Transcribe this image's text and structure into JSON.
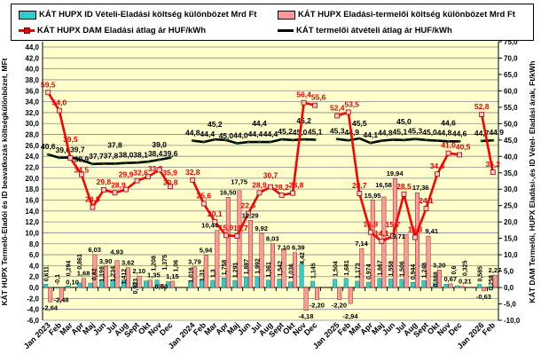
{
  "legend": {
    "id_cost": "KÁT HUPX ID Vételi-Eladási költség különbözet Mrd Ft",
    "sell_cost": "KÁT HUPX Eladási-termelői költség különbözet Mrd Ft",
    "dam_price": "KÁT HUPX DAM Eladási átlag ár HUF/kWh",
    "producer_price": "KÁT termelői átvételi átlag ár HUF/kWh"
  },
  "colors": {
    "id_cost": "#33cccc",
    "sell_cost": "#ff9999",
    "dam_price": "#ff0000",
    "producer_price": "#000000",
    "plot_bg": "#ffffcc"
  },
  "chart_data": {
    "type": "bar+line",
    "categories": [
      "Jan 2023",
      "Feb",
      "Mar",
      "Apr",
      "Maj",
      "Jun",
      "Jul",
      "Aug",
      "Sept",
      "Okt",
      "Nov",
      "Dec",
      "",
      "Jan 2024",
      "Feb",
      "Mar",
      "Apr",
      "Maj",
      "Jun",
      "Jul",
      "Aug",
      "Sept",
      "Okt",
      "Nov",
      "Dec",
      "",
      "Jan 2025",
      "Feb",
      "Mar",
      "Apr",
      "Maj",
      "Jun",
      "Jul",
      "Aug",
      "Sept",
      "Okt",
      "Nov",
      "Dec",
      "",
      "Jan 2026",
      "Feb"
    ],
    "ylabel_left": "KÁT HUPX Termelő-Eladói és ID beavatkozás költségkülönbözet, MFt",
    "ylabel_right": "KÁT DAM Termelői, HUPX Eladási-,és ID Vétel- Eladási árak, Ft/kWh",
    "ylim_left": [
      -6,
      44
    ],
    "ylim_right": [
      -10,
      75
    ],
    "yticks_left_step": 2,
    "yticks_right_step": 5,
    "grid": true,
    "legend_position": "top",
    "series": [
      {
        "name": "KÁT HUPX ID Vételi-Eladási költség különbözet Mrd Ft",
        "axis": "left",
        "kind": "bar",
        "values": [
          0.611,
          -0.1,
          0.294,
          0.861,
          0.82,
          1.198,
          1.234,
          1.412,
          0.923,
          1.208,
          1.375,
          1.06,
          null,
          1.016,
          1.31,
          1.3,
          1.758,
          1.291,
          1.887,
          1.992,
          1.361,
          1.542,
          1.036,
          4.42,
          1.145,
          null,
          1.504,
          1.681,
          1.173,
          0.974,
          1.667,
          1.558,
          1.506,
          0.944,
          1.248,
          0.888,
          0.6,
          0.325,
          null,
          0.585,
          0.258
        ]
      },
      {
        "name": "KÁT HUPX Eladási-termelői költség különbözet Mrd Ft",
        "axis": "left",
        "kind": "bar",
        "values": [
          -2.64,
          -2.48,
          0.1,
          1.68,
          6.03,
          3.9,
          4.93,
          3.62,
          2.1,
          1.35,
          0.6,
          1.15,
          null,
          3.79,
          5.94,
          10.44,
          16.5,
          17.75,
          12.29,
          9.92,
          8.03,
          7.1,
          6.39,
          -4.18,
          -2.2,
          null,
          -2.2,
          -2.94,
          7.14,
          15.95,
          16.58,
          19.94,
          9.71,
          17.36,
          9.41,
          3.2,
          0.67,
          0.21,
          null,
          -0.63,
          2.27
        ]
      },
      {
        "name": "KÁT HUPX DAM Eladási átlag ár HUF/kWh",
        "axis": "right",
        "kind": "line",
        "values": [
          59.5,
          54.0,
          39.5,
          34.5,
          24.5,
          29.8,
          28.9,
          29.9,
          32.6,
          33.8,
          35.9,
          30.8,
          null,
          32.8,
          25.6,
          20.1,
          15.9,
          15.7,
          22.6,
          28.9,
          30.7,
          28.2,
          28.8,
          56.4,
          55.6,
          null,
          52.4,
          53.5,
          28.7,
          16.9,
          14.1,
          15.7,
          28.5,
          15.3,
          24.1,
          34.6,
          41.0,
          40.5,
          null,
          52.8,
          35.2
        ]
      },
      {
        "name": "KÁT termelői átvételi átlag ár HUF/kWh",
        "axis": "right",
        "kind": "line",
        "values": [
          40.6,
          39.6,
          39.7,
          38.9,
          37.7,
          37.8,
          37.8,
          38.0,
          38.1,
          38.4,
          39.0,
          39.6,
          null,
          44.8,
          44.4,
          45.2,
          45.0,
          44.0,
          44.4,
          44.4,
          44.4,
          45.2,
          45.0,
          45.2,
          45.1,
          null,
          45.3,
          44.9,
          45.5,
          44.1,
          44.8,
          45.1,
          45.0,
          45.3,
          45.0,
          44.8,
          44.6,
          44.6,
          null,
          44.7,
          44.9
        ]
      }
    ]
  }
}
